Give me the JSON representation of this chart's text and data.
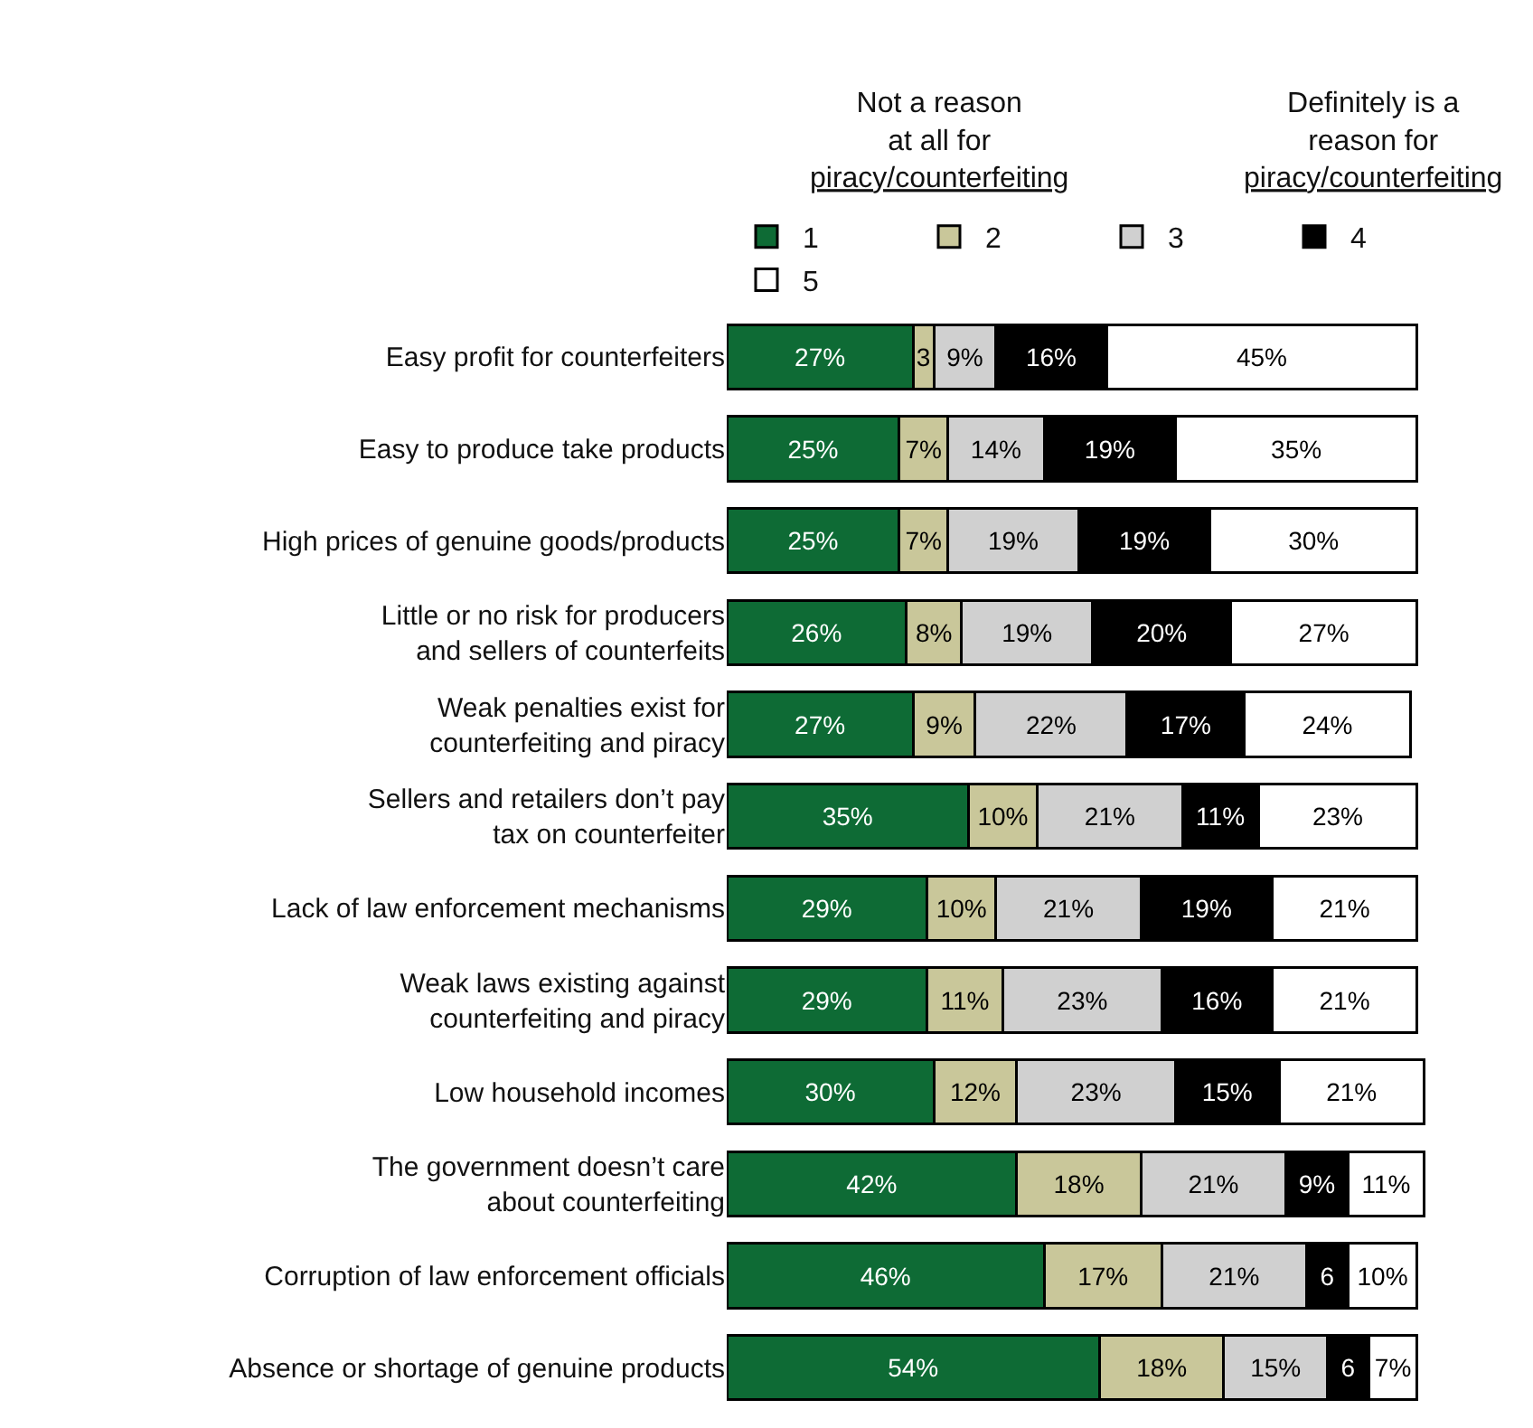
{
  "chart_data": {
    "type": "bar",
    "orientation": "horizontal",
    "stacked": true,
    "legend": "top right",
    "grid": false,
    "annotations": [
      "Not a reason\nat all for\npiracy/counterfeiting",
      "Definitely is a\nreason for\npiracy/counterfeiting"
    ],
    "categories": [
      "Easy profit for counterfeiters",
      "Easy to produce take products",
      "High prices of genuine goods/products",
      "Little or no risk for producers\nand sellers of counterfeits",
      "Weak penalties exist for\ncounterfeiting and piracy",
      "Sellers and retailers don’t pay\ntax on counterfeiter",
      "Lack of law enforcement mechanisms",
      "Weak laws existing against\ncounterfeiting and piracy",
      "Low household incomes",
      "The government doesn’t care\nabout counterfeiting",
      "Corruption of law enforcement officials",
      "Absence or shortage of genuine products"
    ],
    "series": [
      {
        "name": "1",
        "color": "#0e6b35",
        "values": [
          27,
          25,
          25,
          26,
          27,
          35,
          29,
          29,
          30,
          42,
          46,
          54
        ],
        "value_labels": [
          "27%",
          "25%",
          "25%",
          "26%",
          "27%",
          "35%",
          "29%",
          "29%",
          "30%",
          "42%",
          "46%",
          "54%"
        ]
      },
      {
        "name": "2",
        "color": "#c9c79a",
        "values": [
          3,
          7,
          7,
          8,
          9,
          10,
          10,
          11,
          12,
          18,
          17,
          18
        ],
        "value_labels": [
          "3",
          "7%",
          "7%",
          "8%",
          "9%",
          "10%",
          "10%",
          "11%",
          "12%",
          "18%",
          "17%",
          "18%"
        ]
      },
      {
        "name": "3",
        "color": "#d0d0d0",
        "values": [
          9,
          14,
          19,
          19,
          22,
          21,
          21,
          23,
          23,
          21,
          21,
          15
        ],
        "value_labels": [
          "9%",
          "14%",
          "19%",
          "19%",
          "22%",
          "21%",
          "21%",
          "23%",
          "23%",
          "21%",
          "21%",
          "15%"
        ]
      },
      {
        "name": "4",
        "color": "#000000",
        "values": [
          16,
          19,
          19,
          20,
          17,
          11,
          19,
          16,
          15,
          9,
          6,
          6
        ],
        "value_labels": [
          "16%",
          "19%",
          "19%",
          "20%",
          "17%",
          "11%",
          "19%",
          "16%",
          "15%",
          "9%",
          "6",
          "6"
        ]
      },
      {
        "name": "5",
        "color": "#ffffff",
        "values": [
          45,
          35,
          30,
          27,
          24,
          23,
          21,
          21,
          21,
          11,
          10,
          7
        ],
        "value_labels": [
          "45%",
          "35%",
          "30%",
          "27%",
          "24%",
          "23%",
          "21%",
          "21%",
          "21%",
          "11%",
          "10%",
          "7%"
        ]
      }
    ]
  }
}
